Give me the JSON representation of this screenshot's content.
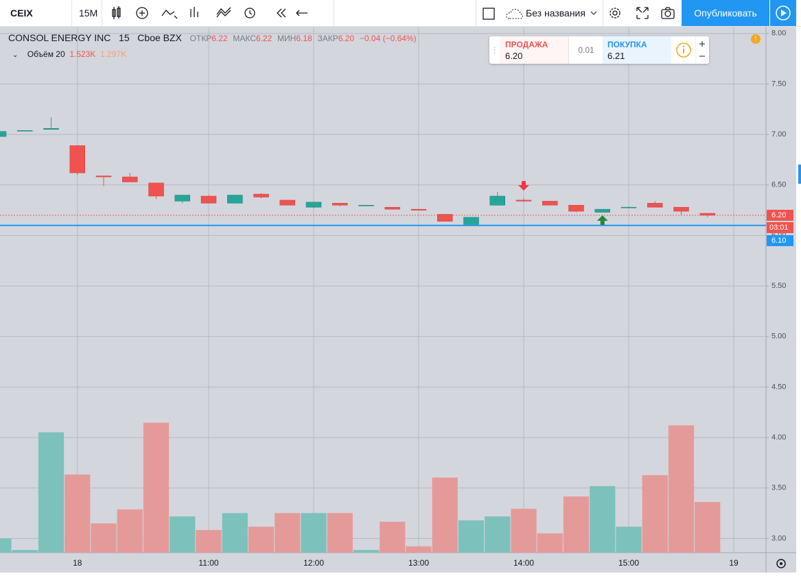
{
  "toolbar": {
    "symbol": "CEIX",
    "interval": "15M",
    "layout_name": "Без названия",
    "publish": "Опубликовать"
  },
  "legend": {
    "name": "CONSOL ENERGY INC",
    "interval": "15",
    "exchange": "Cboe BZX",
    "open_label": "ОТКР",
    "open": "6.22",
    "high_label": "МАКС",
    "high": "6.22",
    "low_label": "МИН",
    "low": "6.18",
    "close_label": "ЗАКР",
    "close": "6.20",
    "change": "−0.04 (−0.64%)",
    "volume_title": "Объём 20",
    "volume": "1.523K",
    "volume_ma": "1.297K"
  },
  "order_panel": {
    "sell_label": "ПРОДАЖА",
    "sell_price": "6.20",
    "spread": "0.01",
    "buy_label": "ПОКУПКА",
    "buy_price": "6.21"
  },
  "chart_data": {
    "type": "candlestick",
    "categories": [
      null,
      null,
      null,
      "18",
      null,
      null,
      null,
      null,
      "11:00",
      null,
      null,
      null,
      "12:00",
      null,
      null,
      null,
      "13:00",
      null,
      null,
      null,
      "14:00",
      null,
      null,
      null,
      "15:00",
      null,
      null,
      null,
      "19"
    ],
    "open": [
      6.98,
      7.04,
      7.05,
      6.89,
      6.59,
      6.58,
      6.52,
      6.34,
      6.39,
      6.32,
      6.41,
      6.35,
      6.28,
      6.32,
      6.3,
      6.28,
      6.26,
      6.21,
      6.11,
      6.3,
      6.35,
      6.34,
      6.3,
      6.23,
      6.28,
      6.32,
      6.28,
      6.22,
      null
    ],
    "high": [
      7.03,
      7.04,
      7.17,
      6.89,
      6.59,
      6.62,
      6.52,
      6.4,
      6.4,
      6.4,
      6.42,
      6.35,
      6.33,
      6.32,
      6.3,
      6.28,
      6.26,
      6.21,
      6.18,
      6.43,
      6.37,
      6.34,
      6.3,
      6.26,
      6.29,
      6.34,
      6.28,
      6.22,
      null
    ],
    "low": [
      6.98,
      7.04,
      7.05,
      6.6,
      6.49,
      6.53,
      6.36,
      6.32,
      6.32,
      6.32,
      6.37,
      6.3,
      6.27,
      6.29,
      6.3,
      6.26,
      6.25,
      6.14,
      6.11,
      6.3,
      6.33,
      6.3,
      6.23,
      6.23,
      6.28,
      6.28,
      6.2,
      6.18,
      null
    ],
    "close": [
      7.03,
      7.04,
      7.06,
      6.62,
      6.58,
      6.53,
      6.39,
      6.4,
      6.32,
      6.4,
      6.38,
      6.3,
      6.33,
      6.3,
      6.3,
      6.26,
      6.25,
      6.14,
      6.18,
      6.39,
      6.34,
      6.3,
      6.24,
      6.26,
      6.28,
      6.28,
      6.24,
      6.2,
      null
    ],
    "volume": [
      0.43,
      0.08,
      3.62,
      2.35,
      0.88,
      1.3,
      3.91,
      1.09,
      0.68,
      1.19,
      0.78,
      1.19,
      1.19,
      1.19,
      0.08,
      0.93,
      0.19,
      2.26,
      0.97,
      1.09,
      1.32,
      0.58,
      1.69,
      2.0,
      0.78,
      2.33,
      3.83,
      1.523,
      null
    ],
    "volume_ylim": [
      0,
      15.8
    ],
    "ylim": [
      2.86,
      8.06
    ],
    "yticks": [
      {
        "value": 3,
        "label": "3.00"
      },
      {
        "value": 3.5,
        "label": "3.50"
      },
      {
        "value": 4,
        "label": "4.00"
      },
      {
        "value": 4.5,
        "label": "4.50"
      },
      {
        "value": 5,
        "label": "5.00"
      },
      {
        "value": 5.5,
        "label": "5.50"
      },
      {
        "value": 6,
        "label": "6.00"
      },
      {
        "value": 6.5,
        "label": "6.50"
      },
      {
        "value": 7,
        "label": "7.00"
      },
      {
        "value": 7.5,
        "label": "7.50"
      },
      {
        "value": 8,
        "label": "8.00"
      }
    ],
    "grid": true,
    "up_color": "#26a69a",
    "down_color": "#ef5350",
    "volume_up_color": "#7cc1bc",
    "volume_down_color": "#e59a9a",
    "price_lines": [
      {
        "value": 6.2,
        "label": "6.20",
        "color": "#ef5350"
      },
      {
        "value": 6.1,
        "label": "6.10",
        "color": "#2196f3"
      }
    ],
    "countdown": "03:01"
  }
}
